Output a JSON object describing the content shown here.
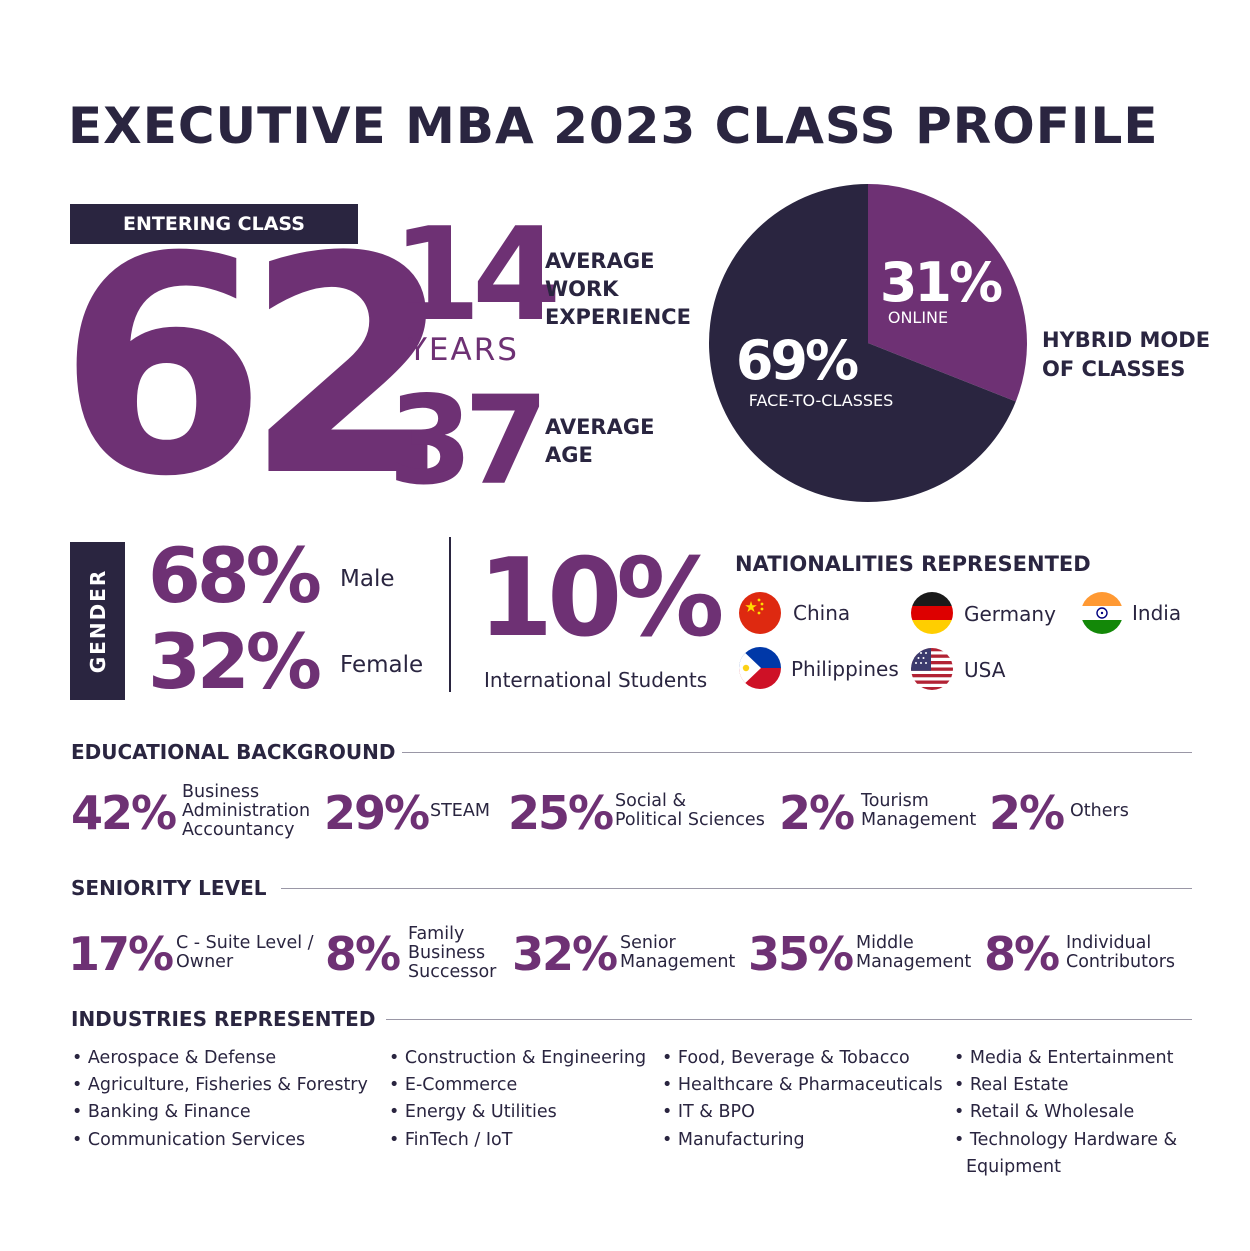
{
  "title": "EXECUTIVE MBA 2023 CLASS PROFILE",
  "entering": {
    "label": "ENTERING CLASS",
    "value": "62"
  },
  "experience": {
    "value": "14",
    "unit": "YEARS",
    "label_lines": [
      "AVERAGE",
      "WORK",
      "EXPERIENCE"
    ]
  },
  "age": {
    "value": "37",
    "label_lines": [
      "AVERAGE",
      "AGE"
    ]
  },
  "hybrid": {
    "label_lines": [
      "HYBRID MODE",
      "OF CLASSES"
    ]
  },
  "chart_data": {
    "type": "pie",
    "title": "HYBRID MODE OF CLASSES",
    "slices": [
      {
        "label": "ONLINE",
        "value": 31,
        "display": "31%",
        "color": "#6e3174"
      },
      {
        "label": "FACE-TO-CLASSES",
        "value": 69,
        "display": "69%",
        "color": "#2a2540"
      }
    ]
  },
  "gender": {
    "label": "GENDER",
    "items": [
      {
        "pct": "68%",
        "label": "Male"
      },
      {
        "pct": "32%",
        "label": "Female"
      }
    ]
  },
  "international": {
    "value": "10%",
    "label": "International Students"
  },
  "nationalities": {
    "title": "NATIONALITIES REPRESENTED",
    "items": [
      {
        "name": "China",
        "icon": "china-flag-icon"
      },
      {
        "name": "Germany",
        "icon": "germany-flag-icon"
      },
      {
        "name": "India",
        "icon": "india-flag-icon"
      },
      {
        "name": "Philippines",
        "icon": "philippines-flag-icon"
      },
      {
        "name": "USA",
        "icon": "usa-flag-icon"
      }
    ]
  },
  "education": {
    "title": "EDUCATIONAL BACKGROUND",
    "items": [
      {
        "pct": "42%",
        "label_lines": [
          "Business",
          "Administration",
          "Accountancy"
        ]
      },
      {
        "pct": "29%",
        "label_lines": [
          "STEAM"
        ]
      },
      {
        "pct": "25%",
        "label_lines": [
          "Social &",
          "Political Sciences"
        ]
      },
      {
        "pct": "2%",
        "label_lines": [
          "Tourism",
          "Management"
        ]
      },
      {
        "pct": "2%",
        "label_lines": [
          "Others"
        ]
      }
    ]
  },
  "seniority": {
    "title": "SENIORITY LEVEL",
    "items": [
      {
        "pct": "17%",
        "label_lines": [
          "C - Suite Level /",
          "Owner"
        ]
      },
      {
        "pct": "8%",
        "label_lines": [
          "Family",
          "Business",
          "Successor"
        ]
      },
      {
        "pct": "32%",
        "label_lines": [
          "Senior",
          "Management"
        ]
      },
      {
        "pct": "35%",
        "label_lines": [
          "Middle",
          "Management"
        ]
      },
      {
        "pct": "8%",
        "label_lines": [
          "Individual",
          "Contributors"
        ]
      }
    ]
  },
  "industries": {
    "title": "INDUSTRIES REPRESENTED",
    "columns": [
      [
        "Aerospace & Defense",
        "Agriculture, Fisheries & Forestry",
        "Banking & Finance",
        "Communication Services"
      ],
      [
        "Construction & Engineering",
        "E-Commerce",
        "Energy & Utilities",
        "FinTech / IoT"
      ],
      [
        "Food, Beverage & Tobacco",
        "Healthcare & Pharmaceuticals",
        "IT & BPO",
        "Manufacturing"
      ],
      [
        "Media & Entertainment",
        "Real Estate",
        "Retail & Wholesale",
        "Technology Hardware &",
        "Equipment"
      ]
    ]
  },
  "colors": {
    "navy": "#2a2540",
    "purple": "#6e3174"
  }
}
